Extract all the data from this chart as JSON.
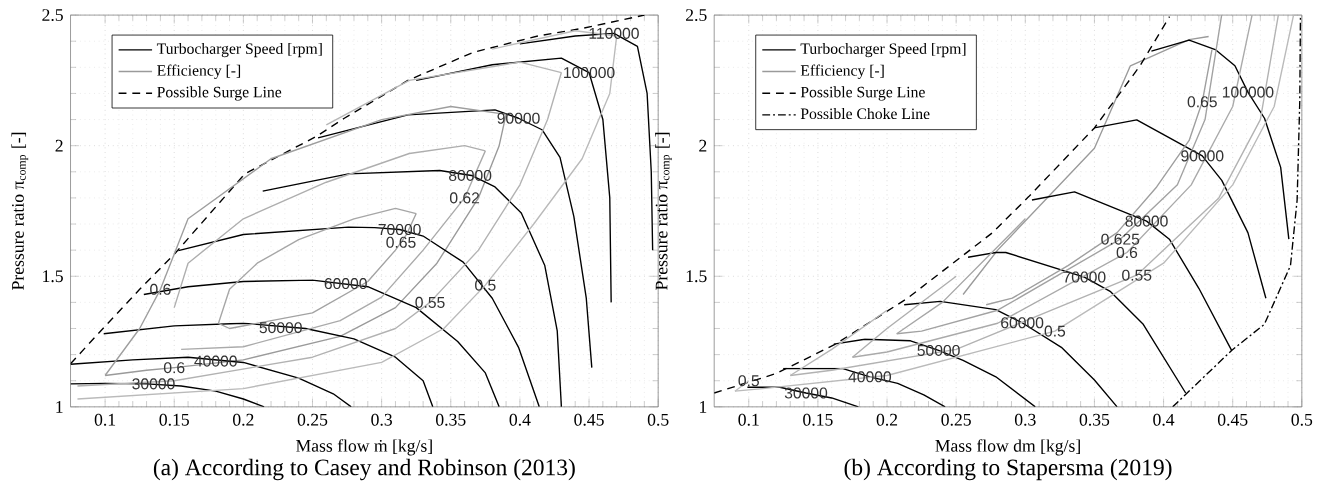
{
  "chart_data": [
    {
      "type": "line",
      "title": "(a) According to Casey and Robinson (2013)",
      "xlabel": "Mass flow ṁ [kg/s]",
      "ylabel": "Pressure ratio π$_{comp}$ [-]",
      "xlim": [
        0.075,
        0.5
      ],
      "ylim": [
        1,
        2.5
      ],
      "xticks": [
        0.1,
        0.15,
        0.2,
        0.25,
        0.3,
        0.35,
        0.4,
        0.45,
        0.5
      ],
      "yticks": [
        1,
        1.5,
        2,
        2.5
      ],
      "grid": true,
      "legend": "top left",
      "series": [
        {
          "name": "Turbocharger Speed [rpm]",
          "color": "#000000",
          "line_style": "solid",
          "x": [
            0.075,
            0.1,
            0.13,
            0.155,
            0.18,
            0.2,
            0.215
          ],
          "values": [
            1.088,
            1.09,
            1.088,
            1.08,
            1.06,
            1.03,
            1.0
          ]
        },
        {
          "name": "Efficiency [-]",
          "color": "#9a9a9a",
          "line_style": "solid",
          "x": [
            0.1,
            0.13,
            0.15,
            0.2,
            0.27,
            0.31,
            0.34,
            0.37,
            0.385,
            0.39
          ],
          "values": [
            1.12,
            1.14,
            1.15,
            1.18,
            1.27,
            1.38,
            1.55,
            1.8,
            2.0,
            2.12
          ]
        },
        {
          "name": "Possible Surge Line",
          "color": "#000000",
          "line_style": "dashed",
          "x": [
            0.075,
            0.099,
            0.125,
            0.151,
            0.201,
            0.253,
            0.273,
            0.319,
            0.366,
            0.413,
            0.446,
            0.49
          ],
          "values": [
            1.165,
            1.303,
            1.45,
            1.59,
            1.892,
            2.036,
            2.105,
            2.25,
            2.357,
            2.42,
            2.45,
            2.5
          ]
        },
        {
          "color": "#000000",
          "line_style": "solid",
          "x": [
            0.075,
            0.12,
            0.16,
            0.2,
            0.24,
            0.265,
            0.278
          ],
          "values": [
            1.163,
            1.18,
            1.19,
            1.17,
            1.11,
            1.05,
            1.0
          ]
        },
        {
          "color": "#000000",
          "line_style": "solid",
          "x": [
            0.099,
            0.15,
            0.2,
            0.245,
            0.28,
            0.31,
            0.33,
            0.337
          ],
          "values": [
            1.28,
            1.31,
            1.32,
            1.3,
            1.26,
            1.19,
            1.1,
            1.0
          ]
        },
        {
          "color": "#000000",
          "line_style": "solid",
          "x": [
            0.128,
            0.16,
            0.2,
            0.25,
            0.29,
            0.325,
            0.355,
            0.375,
            0.385
          ],
          "values": [
            1.43,
            1.46,
            1.48,
            1.485,
            1.46,
            1.38,
            1.25,
            1.13,
            1.0
          ]
        },
        {
          "color": "#000000",
          "line_style": "solid",
          "x": [
            0.153,
            0.2,
            0.276,
            0.295,
            0.313,
            0.33,
            0.359,
            0.38,
            0.399,
            0.414
          ],
          "values": [
            1.598,
            1.66,
            1.688,
            1.686,
            1.679,
            1.654,
            1.554,
            1.416,
            1.228,
            1.0
          ]
        },
        {
          "color": "#000000",
          "line_style": "solid",
          "x": [
            0.214,
            0.276,
            0.342,
            0.365,
            0.382,
            0.401,
            0.418,
            0.427,
            0.43
          ],
          "values": [
            1.826,
            1.892,
            1.905,
            1.886,
            1.842,
            1.742,
            1.541,
            1.291,
            1.0
          ]
        },
        {
          "color": "#000000",
          "line_style": "solid",
          "x": [
            0.254,
            0.319,
            0.382,
            0.399,
            0.416,
            0.429,
            0.439,
            0.448,
            0.452
          ],
          "values": [
            2.03,
            2.118,
            2.137,
            2.105,
            2.061,
            1.955,
            1.729,
            1.416,
            1.15
          ]
        },
        {
          "color": "#000000",
          "line_style": "solid",
          "x": [
            0.325,
            0.38,
            0.43,
            0.45,
            0.46,
            0.465,
            0.466
          ],
          "values": [
            2.25,
            2.31,
            2.335,
            2.28,
            2.1,
            1.8,
            1.4
          ]
        },
        {
          "color": "#000000",
          "line_style": "solid",
          "x": [
            0.4,
            0.44,
            0.468,
            0.485,
            0.492,
            0.495,
            0.496
          ],
          "values": [
            2.39,
            2.42,
            2.43,
            2.38,
            2.2,
            1.9,
            1.6
          ]
        },
        {
          "color": "#a2a2a2",
          "line_style": "solid",
          "x": [
            0.182,
            0.19,
            0.25,
            0.29,
            0.31,
            0.314,
            0.318,
            0.325
          ],
          "values": [
            1.32,
            1.3,
            1.36,
            1.48,
            1.6,
            1.63,
            1.66,
            1.74
          ]
        },
        {
          "color": "#aaaaaa",
          "line_style": "solid",
          "x": [
            0.155,
            0.2,
            0.27,
            0.3,
            0.33,
            0.36,
            0.375
          ],
          "values": [
            1.22,
            1.23,
            1.33,
            1.42,
            1.6,
            1.8,
            1.98
          ]
        },
        {
          "color": "#b2b2b2",
          "line_style": "solid",
          "x": [
            0.08,
            0.15,
            0.25,
            0.31,
            0.335,
            0.37,
            0.4,
            0.42,
            0.43
          ],
          "values": [
            1.08,
            1.1,
            1.19,
            1.3,
            1.4,
            1.6,
            1.85,
            2.1,
            2.28
          ]
        },
        {
          "color": "#bababa",
          "line_style": "solid",
          "x": [
            0.08,
            0.2,
            0.3,
            0.345,
            0.375,
            0.41,
            0.445,
            0.465,
            0.47
          ],
          "values": [
            1.03,
            1.07,
            1.17,
            1.3,
            1.466,
            1.7,
            1.95,
            2.2,
            2.42
          ]
        },
        {
          "color": "#9e9e9e",
          "line_style": "solid",
          "x": [
            0.39,
            0.35,
            0.3,
            0.22,
            0.16,
            0.14,
            0.125,
            0.1
          ],
          "values": [
            2.12,
            2.15,
            2.1,
            1.95,
            1.72,
            1.45,
            1.3,
            1.12
          ]
        },
        {
          "color": "#a6a6a6",
          "line_style": "solid",
          "x": [
            0.325,
            0.31,
            0.28,
            0.24,
            0.21,
            0.19,
            0.182
          ],
          "values": [
            1.74,
            1.76,
            1.72,
            1.64,
            1.55,
            1.45,
            1.32
          ]
        },
        {
          "color": "#aeaeae",
          "line_style": "solid",
          "x": [
            0.375,
            0.36,
            0.32,
            0.26,
            0.2,
            0.16,
            0.15
          ],
          "values": [
            1.98,
            2.0,
            1.97,
            1.86,
            1.72,
            1.55,
            1.38
          ]
        },
        {
          "color": "#b6b6b6",
          "line_style": "solid",
          "x": [
            0.43,
            0.4,
            0.32,
            0.26
          ],
          "values": [
            2.28,
            2.32,
            2.25,
            2.08
          ]
        },
        {
          "color": "#bebebe",
          "line_style": "solid",
          "x": [
            0.47,
            0.44,
            0.38
          ],
          "values": [
            2.42,
            2.44,
            2.37
          ]
        }
      ],
      "annotations": [
        {
          "text": "30000",
          "x": 0.135,
          "y": 1.088
        },
        {
          "text": "40000",
          "x": 0.18,
          "y": 1.175
        },
        {
          "text": "50000",
          "x": 0.227,
          "y": 1.303
        },
        {
          "text": "60000",
          "x": 0.274,
          "y": 1.472
        },
        {
          "text": "70000",
          "x": 0.313,
          "y": 1.679
        },
        {
          "text": "80000",
          "x": 0.364,
          "y": 1.886
        },
        {
          "text": "90000",
          "x": 0.399,
          "y": 2.105
        },
        {
          "text": "100000",
          "x": 0.45,
          "y": 2.28
        },
        {
          "text": "110000",
          "x": 0.468,
          "y": 2.43
        },
        {
          "text": "0.6",
          "x": 0.14,
          "y": 1.45
        },
        {
          "text": "0.6",
          "x": 0.15,
          "y": 1.15
        },
        {
          "text": "0.65",
          "x": 0.314,
          "y": 1.63
        },
        {
          "text": "0.62",
          "x": 0.36,
          "y": 1.8
        },
        {
          "text": "0.55",
          "x": 0.335,
          "y": 1.4
        },
        {
          "text": "0.5",
          "x": 0.375,
          "y": 1.466
        }
      ]
    },
    {
      "type": "line",
      "title": "(b) According to Stapersma (2019)",
      "xlabel": "Mass flow dm [kg/s]",
      "ylabel": "Pressure ratio π$_{comp}$ [-]",
      "xlim": [
        0.075,
        0.5
      ],
      "ylim": [
        1,
        2.5
      ],
      "xticks": [
        0.1,
        0.15,
        0.2,
        0.25,
        0.3,
        0.35,
        0.4,
        0.45,
        0.5
      ],
      "yticks": [
        1,
        1.5,
        2,
        2.5
      ],
      "grid": true,
      "legend": "top left",
      "series": [
        {
          "name": "Turbocharger Speed [rpm]",
          "color": "#000000",
          "line_style": "solid",
          "x": [
            0.099,
            0.1225,
            0.1414,
            0.16,
            0.1793
          ],
          "values": [
            1.075,
            1.075,
            1.053,
            1.034,
            1.0
          ]
        },
        {
          "name": "Efficiency [-]",
          "color": "#9a9a9a",
          "line_style": "solid",
          "x": [
            0.255,
            0.28,
            0.35,
            0.376,
            0.4185,
            0.4326
          ],
          "values": [
            1.43,
            1.6,
            1.99,
            2.306,
            2.406,
            2.418
          ]
        },
        {
          "name": "Possible Surge Line",
          "color": "#000000",
          "line_style": "dashed",
          "x": [
            0.075,
            0.12,
            0.1627,
            0.2148,
            0.2763,
            0.3025,
            0.35,
            0.383,
            0.4043
          ],
          "values": [
            1.053,
            1.128,
            1.24,
            1.416,
            1.667,
            1.805,
            2.068,
            2.306,
            2.494
          ]
        },
        {
          "name": "Possible Choke Line",
          "color": "#000000",
          "line_style": "dashdot",
          "x": [
            0.4066,
            0.4492,
            0.4729,
            0.4918,
            0.4966,
            0.4985,
            0.499
          ],
          "values": [
            1.0,
            1.216,
            1.316,
            1.541,
            1.792,
            2.168,
            2.494
          ]
        },
        {
          "color": "#000000",
          "line_style": "solid",
          "x": [
            0.1249,
            0.1675,
            0.1876,
            0.2077,
            0.2266,
            0.242
          ],
          "values": [
            1.147,
            1.147,
            1.115,
            1.09,
            1.046,
            1.0
          ]
        },
        {
          "color": "#000000",
          "line_style": "solid",
          "x": [
            0.1615,
            0.184,
            0.217,
            0.2373,
            0.255,
            0.2787,
            0.3072
          ],
          "values": [
            1.24,
            1.259,
            1.253,
            1.216,
            1.178,
            1.115,
            1.0
          ]
        },
        {
          "color": "#000000",
          "line_style": "solid",
          "x": [
            0.2124,
            0.2385,
            0.2787,
            0.2977,
            0.3261,
            0.35,
            0.3664
          ],
          "values": [
            1.391,
            1.404,
            1.372,
            1.322,
            1.228,
            1.103,
            1.0
          ]
        },
        {
          "color": "#000000",
          "line_style": "solid",
          "x": [
            0.2586,
            0.2787,
            0.2859,
            0.3427,
            0.3617,
            0.3853,
            0.416
          ],
          "values": [
            1.573,
            1.591,
            1.591,
            1.497,
            1.441,
            1.316,
            1.053
          ]
        },
        {
          "color": "#000000",
          "line_style": "solid",
          "x": [
            0.3048,
            0.3356,
            0.3877,
            0.4042,
            0.4255,
            0.4492
          ],
          "values": [
            1.792,
            1.823,
            1.711,
            1.642,
            1.454,
            1.216
          ]
        },
        {
          "color": "#000000",
          "line_style": "solid",
          "x": [
            0.3498,
            0.3806,
            0.428,
            0.4421,
            0.461,
            0.474
          ],
          "values": [
            2.068,
            2.099,
            1.961,
            1.867,
            1.667,
            1.416
          ]
        },
        {
          "color": "#000000",
          "line_style": "solid",
          "x": [
            0.3912,
            0.4185,
            0.4374,
            0.4516,
            0.461,
            0.473,
            0.4847,
            0.4906
          ],
          "values": [
            2.362,
            2.404,
            2.368,
            2.306,
            2.205,
            2.105,
            1.917,
            1.642
          ]
        },
        {
          "color": "#a2a2a2",
          "line_style": "solid",
          "x": [
            0.207,
            0.225,
            0.28,
            0.3687,
            0.41,
            0.43,
            0.442
          ],
          "values": [
            1.28,
            1.29,
            1.37,
            1.642,
            1.85,
            2.1,
            2.5
          ]
        },
        {
          "color": "#aaaaaa",
          "line_style": "solid",
          "x": [
            0.175,
            0.2,
            0.28,
            0.3735,
            0.42,
            0.45,
            0.464
          ],
          "values": [
            1.19,
            1.21,
            1.32,
            1.591,
            1.85,
            2.15,
            2.5
          ]
        },
        {
          "color": "#b2b2b2",
          "line_style": "solid",
          "x": [
            0.13,
            0.16,
            0.25,
            0.3806,
            0.44,
            0.47,
            0.483
          ],
          "values": [
            1.12,
            1.14,
            1.22,
            1.504,
            1.8,
            2.1,
            2.5
          ]
        },
        {
          "color": "#bababa",
          "line_style": "solid",
          "x": [
            0.09,
            0.11,
            0.2,
            0.3214,
            0.4,
            0.45,
            0.48,
            0.494
          ],
          "values": [
            1.06,
            1.07,
            1.12,
            1.29,
            1.55,
            1.85,
            2.15,
            2.5
          ]
        },
        {
          "color": "#9e9e9e",
          "line_style": "solid",
          "x": [
            0.435,
            0.428,
            0.4185,
            0.395,
            0.3664,
            0.3309,
            0.2906,
            0.2717
          ],
          "values": [
            2.368,
            2.168,
            2.02,
            1.842,
            1.667,
            1.541,
            1.416,
            1.391
          ]
        },
        {
          "color": "#a6a6a6",
          "line_style": "solid",
          "x": [
            0.3,
            0.24,
            0.207
          ],
          "values": [
            1.72,
            1.4,
            1.28
          ]
        },
        {
          "color": "#aeaeae",
          "line_style": "solid",
          "x": [
            0.25,
            0.2,
            0.175
          ],
          "values": [
            1.5,
            1.3,
            1.19
          ]
        },
        {
          "color": "#b6b6b6",
          "line_style": "solid",
          "x": [
            0.2,
            0.16,
            0.13
          ],
          "values": [
            1.37,
            1.22,
            1.12
          ]
        },
        {
          "color": "#bebebe",
          "line_style": "solid",
          "x": [
            0.1,
            0.09
          ],
          "values": [
            1.1,
            1.06
          ]
        }
      ],
      "annotations": [
        {
          "text": "30000",
          "x": 0.1414,
          "y": 1.053
        },
        {
          "text": "40000",
          "x": 0.1876,
          "y": 1.115
        },
        {
          "text": "50000",
          "x": 0.2373,
          "y": 1.216
        },
        {
          "text": "60000",
          "x": 0.2977,
          "y": 1.322
        },
        {
          "text": "70000",
          "x": 0.3427,
          "y": 1.497
        },
        {
          "text": "80000",
          "x": 0.3877,
          "y": 1.711
        },
        {
          "text": "90000",
          "x": 0.428,
          "y": 1.961
        },
        {
          "text": "100000",
          "x": 0.461,
          "y": 2.205
        },
        {
          "text": "0.5",
          "x": 0.1,
          "y": 1.1
        },
        {
          "text": "0.5",
          "x": 0.3214,
          "y": 1.29
        },
        {
          "text": "0.55",
          "x": 0.3806,
          "y": 1.504
        },
        {
          "text": "0.6",
          "x": 0.3735,
          "y": 1.591
        },
        {
          "text": "0.625",
          "x": 0.3687,
          "y": 1.642
        },
        {
          "text": "0.65",
          "x": 0.428,
          "y": 2.168
        }
      ]
    }
  ]
}
